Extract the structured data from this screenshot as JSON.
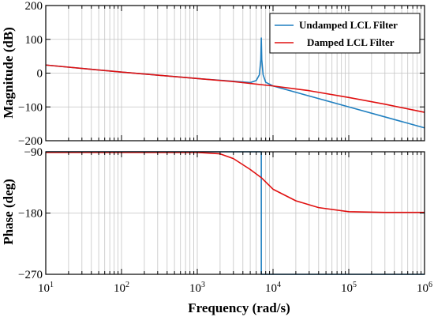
{
  "chart_data": {
    "type": "line",
    "xlabel": "Frequency (rad/s)",
    "xscale": "log",
    "xlim": [
      10,
      1000000
    ],
    "xticks": [
      {
        "value": 10,
        "base": "10",
        "exp": "1"
      },
      {
        "value": 100,
        "base": "10",
        "exp": "2"
      },
      {
        "value": 1000,
        "base": "10",
        "exp": "3"
      },
      {
        "value": 10000,
        "base": "10",
        "exp": "4"
      },
      {
        "value": 100000,
        "base": "10",
        "exp": "5"
      },
      {
        "value": 1000000,
        "base": "10",
        "exp": "6"
      }
    ],
    "grid": true,
    "legend": {
      "placement": "top-right",
      "entries": [
        "Undamped LCL Filter",
        "Damped LCL Filter"
      ]
    },
    "colors": {
      "undamped": "#1f7fc0",
      "damped": "#e01010"
    },
    "panels": [
      {
        "id": "magnitude",
        "ylabel": "Magnitude (dB)",
        "ylim": [
          -200,
          200
        ],
        "yticks": [
          200,
          100,
          0,
          -100,
          -200
        ],
        "series": [
          {
            "name": "Undamped LCL Filter",
            "color": "#1f7fc0",
            "points": [
              [
                10,
                24
              ],
              [
                100,
                3
              ],
              [
                1000,
                -16
              ],
              [
                3000,
                -24
              ],
              [
                5000,
                -28
              ],
              [
                6000,
                -22
              ],
              [
                6600,
                -5
              ],
              [
                6900,
                40
              ],
              [
                7000,
                104
              ],
              [
                7100,
                40
              ],
              [
                7400,
                -5
              ],
              [
                8000,
                -27
              ],
              [
                10000,
                -38
              ],
              [
                100000,
                -100
              ],
              [
                1000000,
                -162
              ]
            ]
          },
          {
            "name": "Damped LCL Filter",
            "color": "#e01010",
            "points": [
              [
                10,
                24
              ],
              [
                100,
                3
              ],
              [
                1000,
                -16
              ],
              [
                3000,
                -25
              ],
              [
                10000,
                -38
              ],
              [
                30000,
                -52
              ],
              [
                100000,
                -72
              ],
              [
                300000,
                -92
              ],
              [
                1000000,
                -116
              ]
            ]
          }
        ]
      },
      {
        "id": "phase",
        "ylabel": "Phase (deg)",
        "ylim": [
          -270,
          -90
        ],
        "yticks": [
          -90,
          -180,
          -270
        ],
        "series": [
          {
            "name": "Undamped LCL Filter",
            "color": "#1f7fc0",
            "points": [
              [
                10,
                -90
              ],
              [
                6999,
                -90
              ],
              [
                7001,
                -270
              ],
              [
                1000000,
                -270
              ]
            ]
          },
          {
            "name": "Damped LCL Filter",
            "color": "#e01010",
            "points": [
              [
                10,
                -91
              ],
              [
                1000,
                -91
              ],
              [
                2000,
                -93
              ],
              [
                3000,
                -100
              ],
              [
                5000,
                -116
              ],
              [
                7000,
                -128
              ],
              [
                10000,
                -145
              ],
              [
                20000,
                -162
              ],
              [
                40000,
                -172
              ],
              [
                100000,
                -178
              ],
              [
                300000,
                -179
              ],
              [
                1000000,
                -179
              ]
            ]
          }
        ]
      }
    ]
  }
}
